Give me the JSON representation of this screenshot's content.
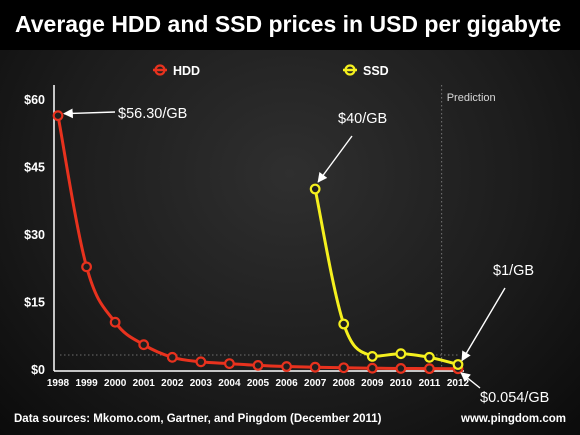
{
  "title": "Average HDD and SSD prices in USD per gigabyte",
  "footer": {
    "sources": "Data sources: Mkomo.com, Gartner, and Pingdom (December 2011)",
    "site": "www.pingdom.com"
  },
  "colors": {
    "hdd": "#e8321e",
    "ssd": "#f5f01e",
    "text": "#ffffff",
    "grid": "#8a8a8a"
  },
  "chart_data": {
    "type": "line",
    "title": "Average HDD and SSD prices in USD per gigabyte",
    "xlabel": "",
    "ylabel": "",
    "x": [
      "1998",
      "1999",
      "2000",
      "2001",
      "2002",
      "2003",
      "2004",
      "2005",
      "2006",
      "2007",
      "2008",
      "2009",
      "2010",
      "2011",
      "2012"
    ],
    "ylim": [
      0,
      60
    ],
    "y_ticks": [
      0,
      15,
      30,
      45,
      60
    ],
    "y_tick_labels": [
      "$0",
      "$15",
      "$30",
      "$45",
      "$60"
    ],
    "legend_position": "top-center",
    "grid": false,
    "series": [
      {
        "name": "HDD",
        "x": [
          "1998",
          "1999",
          "2000",
          "2001",
          "2002",
          "2003",
          "2004",
          "2005",
          "2006",
          "2007",
          "2008",
          "2009",
          "2010",
          "2011",
          "2012"
        ],
        "values": [
          56.3,
          22.7,
          10.4,
          5.4,
          2.6,
          1.6,
          1.2,
          0.8,
          0.55,
          0.4,
          0.28,
          0.18,
          0.12,
          0.08,
          0.054
        ]
      },
      {
        "name": "SSD",
        "x": [
          "2007",
          "2008",
          "2009",
          "2010",
          "2011",
          "2012"
        ],
        "values": [
          40,
          10,
          2.8,
          3.4,
          2.6,
          1
        ]
      }
    ],
    "prediction": {
      "label": "Prediction",
      "start_year": "2011"
    },
    "annotations": [
      {
        "text": "$56.30/GB",
        "series": "HDD",
        "x": "1998",
        "y": 56.3
      },
      {
        "text": "$40/GB",
        "series": "SSD",
        "x": "2007",
        "y": 40
      },
      {
        "text": "$1/GB",
        "series": "SSD",
        "x": "2012",
        "y": 1
      },
      {
        "text": "$0.054/GB",
        "series": "HDD",
        "x": "2012",
        "y": 0.054
      }
    ]
  }
}
